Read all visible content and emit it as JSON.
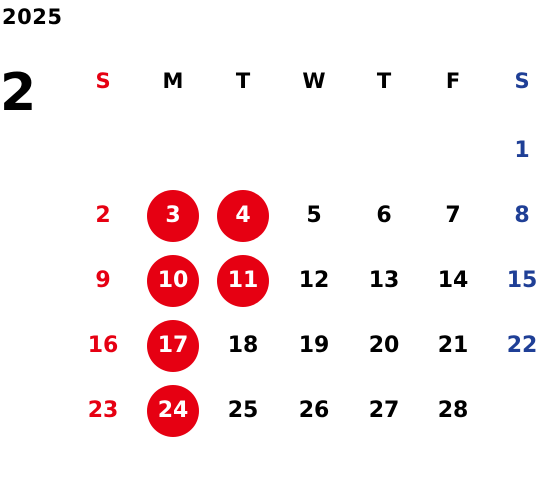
{
  "calendar": {
    "year": "2025",
    "month": "2",
    "weekdays": [
      "S",
      "M",
      "T",
      "W",
      "T",
      "F",
      "S"
    ],
    "days": [
      {
        "day": "1",
        "col": 6,
        "row": 0,
        "highlight": false
      },
      {
        "day": "2",
        "col": 0,
        "row": 1,
        "highlight": false
      },
      {
        "day": "3",
        "col": 1,
        "row": 1,
        "highlight": true
      },
      {
        "day": "4",
        "col": 2,
        "row": 1,
        "highlight": true
      },
      {
        "day": "5",
        "col": 3,
        "row": 1,
        "highlight": false
      },
      {
        "day": "6",
        "col": 4,
        "row": 1,
        "highlight": false
      },
      {
        "day": "7",
        "col": 5,
        "row": 1,
        "highlight": false
      },
      {
        "day": "8",
        "col": 6,
        "row": 1,
        "highlight": false
      },
      {
        "day": "9",
        "col": 0,
        "row": 2,
        "highlight": false
      },
      {
        "day": "10",
        "col": 1,
        "row": 2,
        "highlight": true
      },
      {
        "day": "11",
        "col": 2,
        "row": 2,
        "highlight": true
      },
      {
        "day": "12",
        "col": 3,
        "row": 2,
        "highlight": false
      },
      {
        "day": "13",
        "col": 4,
        "row": 2,
        "highlight": false
      },
      {
        "day": "14",
        "col": 5,
        "row": 2,
        "highlight": false
      },
      {
        "day": "15",
        "col": 6,
        "row": 2,
        "highlight": false
      },
      {
        "day": "16",
        "col": 0,
        "row": 3,
        "highlight": false
      },
      {
        "day": "17",
        "col": 1,
        "row": 3,
        "highlight": true
      },
      {
        "day": "18",
        "col": 2,
        "row": 3,
        "highlight": false
      },
      {
        "day": "19",
        "col": 3,
        "row": 3,
        "highlight": false
      },
      {
        "day": "20",
        "col": 4,
        "row": 3,
        "highlight": false
      },
      {
        "day": "21",
        "col": 5,
        "row": 3,
        "highlight": false
      },
      {
        "day": "22",
        "col": 6,
        "row": 3,
        "highlight": false
      },
      {
        "day": "23",
        "col": 0,
        "row": 4,
        "highlight": false
      },
      {
        "day": "24",
        "col": 1,
        "row": 4,
        "highlight": true
      },
      {
        "day": "25",
        "col": 2,
        "row": 4,
        "highlight": false
      },
      {
        "day": "26",
        "col": 3,
        "row": 4,
        "highlight": false
      },
      {
        "day": "27",
        "col": 4,
        "row": 4,
        "highlight": false
      },
      {
        "day": "28",
        "col": 5,
        "row": 4,
        "highlight": false
      }
    ]
  },
  "colors": {
    "sunday": "#e60012",
    "saturday": "#1f3f96",
    "weekday": "#000000",
    "highlight_bg": "#e60012",
    "highlight_text": "#ffffff"
  }
}
